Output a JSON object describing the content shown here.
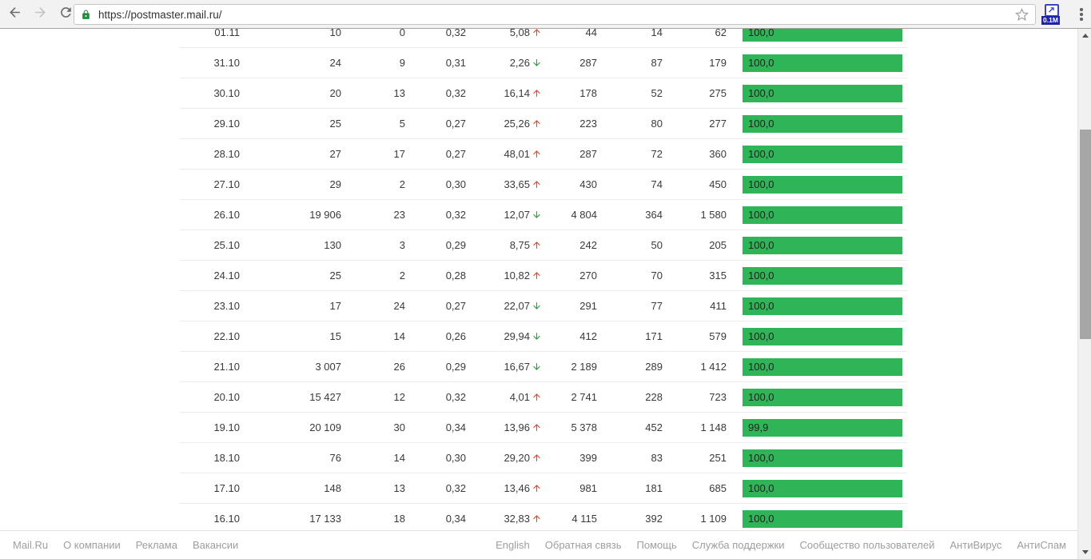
{
  "browser": {
    "url": "https://postmaster.mail.ru/",
    "extension_badge": "0.1M"
  },
  "colors": {
    "bar_green": "#2fb457",
    "trend_up_red": "#e2432d",
    "trend_down_green": "#21a038",
    "lock_green": "#1e8e3e",
    "extension_blue": "#3a46c6",
    "badge_navy": "#1b23b0"
  },
  "table": {
    "rows": [
      {
        "date": "01.11",
        "c2": "10",
        "c3": "0",
        "c4": "0,32",
        "c5": "5,08",
        "trend": "up",
        "c6": "44",
        "c7": "14",
        "c8": "62",
        "bar": "100,0",
        "pct": 100
      },
      {
        "date": "31.10",
        "c2": "24",
        "c3": "9",
        "c4": "0,31",
        "c5": "2,26",
        "trend": "down",
        "c6": "287",
        "c7": "87",
        "c8": "179",
        "bar": "100,0",
        "pct": 100
      },
      {
        "date": "30.10",
        "c2": "20",
        "c3": "13",
        "c4": "0,32",
        "c5": "16,14",
        "trend": "up",
        "c6": "178",
        "c7": "52",
        "c8": "275",
        "bar": "100,0",
        "pct": 100
      },
      {
        "date": "29.10",
        "c2": "25",
        "c3": "5",
        "c4": "0,27",
        "c5": "25,26",
        "trend": "up",
        "c6": "223",
        "c7": "80",
        "c8": "277",
        "bar": "100,0",
        "pct": 100
      },
      {
        "date": "28.10",
        "c2": "27",
        "c3": "17",
        "c4": "0,27",
        "c5": "48,01",
        "trend": "up",
        "c6": "287",
        "c7": "72",
        "c8": "360",
        "bar": "100,0",
        "pct": 100
      },
      {
        "date": "27.10",
        "c2": "29",
        "c3": "2",
        "c4": "0,30",
        "c5": "33,65",
        "trend": "up",
        "c6": "430",
        "c7": "74",
        "c8": "450",
        "bar": "100,0",
        "pct": 100
      },
      {
        "date": "26.10",
        "c2": "19 906",
        "c3": "23",
        "c4": "0,32",
        "c5": "12,07",
        "trend": "down",
        "c6": "4 804",
        "c7": "364",
        "c8": "1 580",
        "bar": "100,0",
        "pct": 100
      },
      {
        "date": "25.10",
        "c2": "130",
        "c3": "3",
        "c4": "0,29",
        "c5": "8,75",
        "trend": "up",
        "c6": "242",
        "c7": "50",
        "c8": "205",
        "bar": "100,0",
        "pct": 100
      },
      {
        "date": "24.10",
        "c2": "25",
        "c3": "2",
        "c4": "0,28",
        "c5": "10,82",
        "trend": "up",
        "c6": "270",
        "c7": "70",
        "c8": "315",
        "bar": "100,0",
        "pct": 100
      },
      {
        "date": "23.10",
        "c2": "17",
        "c3": "24",
        "c4": "0,27",
        "c5": "22,07",
        "trend": "down",
        "c6": "291",
        "c7": "77",
        "c8": "411",
        "bar": "100,0",
        "pct": 100
      },
      {
        "date": "22.10",
        "c2": "15",
        "c3": "14",
        "c4": "0,26",
        "c5": "29,94",
        "trend": "down",
        "c6": "412",
        "c7": "171",
        "c8": "579",
        "bar": "100,0",
        "pct": 100
      },
      {
        "date": "21.10",
        "c2": "3 007",
        "c3": "26",
        "c4": "0,29",
        "c5": "16,67",
        "trend": "down",
        "c6": "2 189",
        "c7": "289",
        "c8": "1 412",
        "bar": "100,0",
        "pct": 100
      },
      {
        "date": "20.10",
        "c2": "15 427",
        "c3": "12",
        "c4": "0,32",
        "c5": "4,01",
        "trend": "up",
        "c6": "2 741",
        "c7": "228",
        "c8": "723",
        "bar": "100,0",
        "pct": 100
      },
      {
        "date": "19.10",
        "c2": "20 109",
        "c3": "30",
        "c4": "0,34",
        "c5": "13,96",
        "trend": "up",
        "c6": "5 378",
        "c7": "452",
        "c8": "1 148",
        "bar": "99,9",
        "pct": 99.9
      },
      {
        "date": "18.10",
        "c2": "76",
        "c3": "14",
        "c4": "0,30",
        "c5": "29,20",
        "trend": "up",
        "c6": "399",
        "c7": "83",
        "c8": "251",
        "bar": "100,0",
        "pct": 100
      },
      {
        "date": "17.10",
        "c2": "148",
        "c3": "13",
        "c4": "0,32",
        "c5": "13,46",
        "trend": "up",
        "c6": "981",
        "c7": "181",
        "c8": "685",
        "bar": "100,0",
        "pct": 100
      },
      {
        "date": "16.10",
        "c2": "17 133",
        "c3": "18",
        "c4": "0,34",
        "c5": "32,83",
        "trend": "up",
        "c6": "4 115",
        "c7": "392",
        "c8": "1 109",
        "bar": "100,0",
        "pct": 100
      }
    ]
  },
  "footer": {
    "left": [
      "Mail.Ru",
      "О компании",
      "Реклама",
      "Вакансии"
    ],
    "right": [
      "English",
      "Обратная связь",
      "Помощь",
      "Служба поддержки",
      "Сообщество пользователей",
      "АнтиВирус",
      "АнтиСпам"
    ]
  }
}
